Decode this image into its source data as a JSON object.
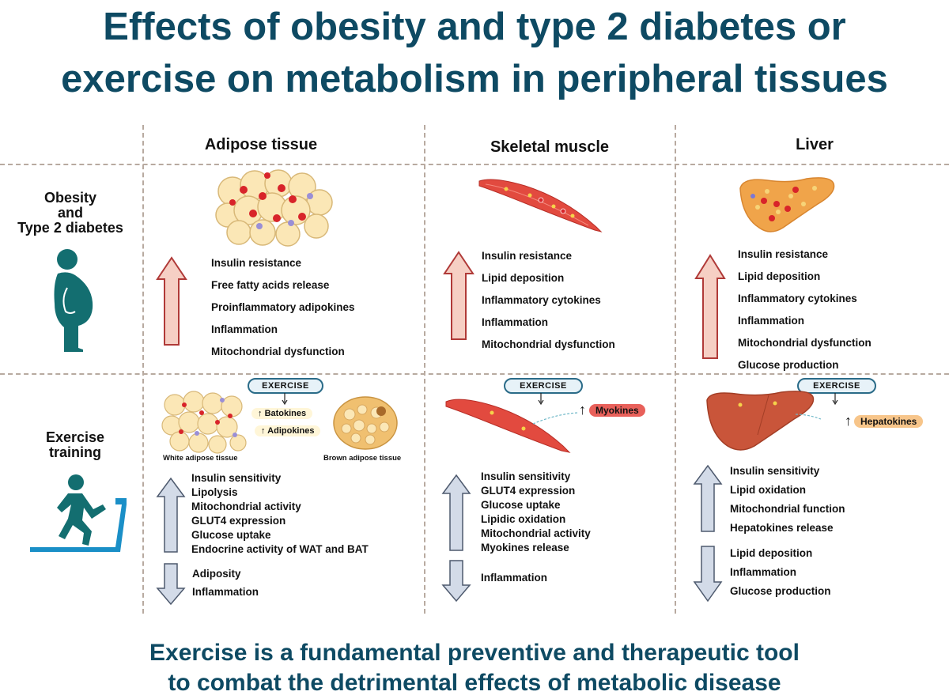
{
  "title": {
    "line1": "Effects of obesity and type 2 diabetes or",
    "line2": "exercise on metabolism in peripheral tissues"
  },
  "columns": {
    "adipose": "Adipose tissue",
    "muscle": "Skeletal muscle",
    "liver": "Liver"
  },
  "rows": {
    "obesity": [
      "Obesity",
      "and",
      "Type 2 diabetes"
    ],
    "exercise": [
      "Exercise",
      "training"
    ]
  },
  "obesity_effects": {
    "adipose": [
      "Insulin resistance",
      "Free fatty acids release",
      "Proinflammatory adipokines",
      "Inflammation",
      "Mitochondrial dysfunction"
    ],
    "muscle": [
      "Insulin resistance",
      "Lipid deposition",
      "Inflammatory cytokines",
      "Inflammation",
      "Mitochondrial dysfunction"
    ],
    "liver": [
      "Insulin resistance",
      "Lipid deposition",
      "Inflammatory cytokines",
      "Inflammation",
      "Mitochondrial dysfunction",
      "Glucose production"
    ]
  },
  "exercise_panels": {
    "exercise_label": "EXERCISE",
    "adipose": {
      "batokines": "Batokines",
      "adipokines": "Adipokines",
      "white_label": "White adipose tissue",
      "brown_label": "Brown adipose tissue",
      "up": [
        "Insulin sensitivity",
        "Lipolysis",
        "Mitochondrial activity",
        "GLUT4 expression",
        "Glucose uptake",
        "Endocrine activity of WAT and BAT"
      ],
      "down": [
        "Adiposity",
        "Inflammation"
      ]
    },
    "muscle": {
      "tag": "Myokines",
      "up": [
        "Insulin sensitivity",
        "GLUT4 expression",
        "Glucose uptake",
        "Lipidic oxidation",
        "Mitochondrial activity",
        "Myokines release"
      ],
      "down": [
        "Inflammation"
      ]
    },
    "liver": {
      "tag": "Hepatokines",
      "up": [
        "Insulin sensitivity",
        "Lipid oxidation",
        "Mitochondrial function",
        "Hepatokines release"
      ],
      "down": [
        "Lipid deposition",
        "Inflammation",
        "Glucose production"
      ]
    }
  },
  "footer": {
    "line1": "Exercise is a fundamental preventive and therapeutic tool",
    "line2": "to combat the detrimental effects of metabolic disease"
  },
  "colors": {
    "title": "#0e4a63",
    "up_arrow_obesity": "#f6cfc4",
    "arrow_exercise": "#d3dbe8",
    "grid_line": "#b8aaa0",
    "figure_teal": "#136e70"
  }
}
